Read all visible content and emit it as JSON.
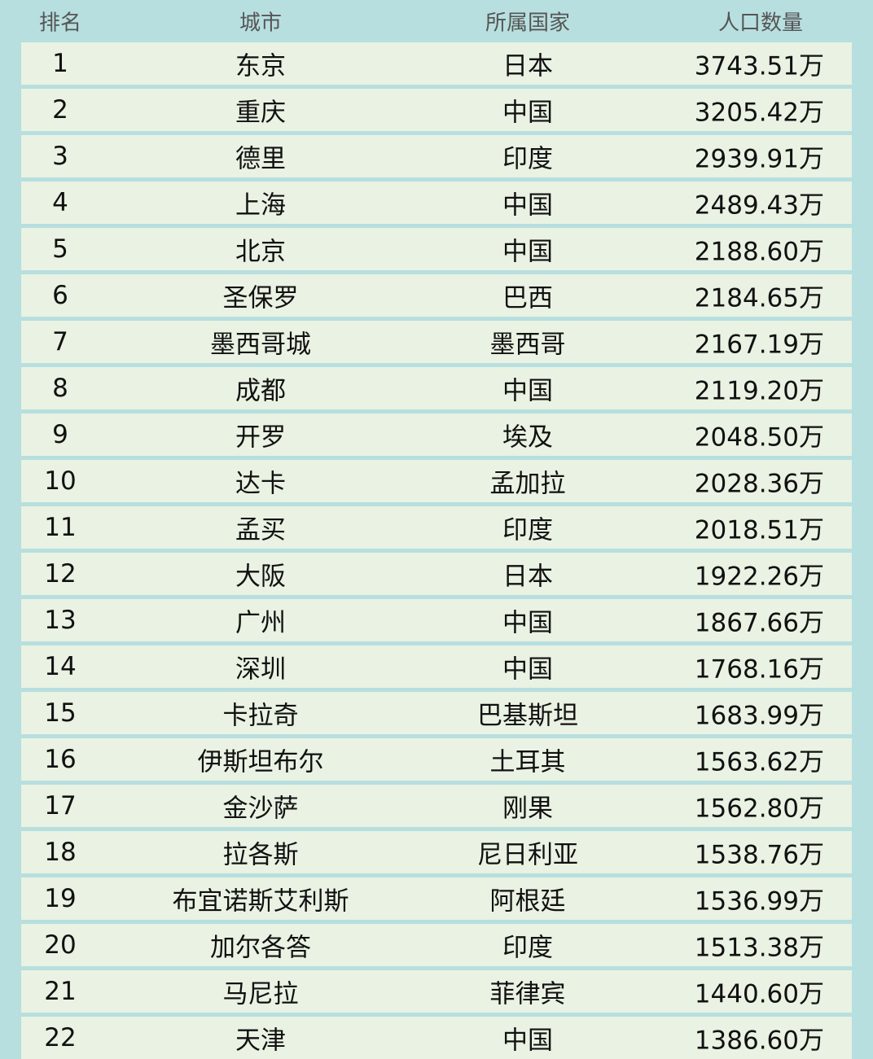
{
  "header": {
    "rank": "排名",
    "city": "城市",
    "country": "所属国家",
    "population": "人口数量"
  },
  "rows": [
    {
      "rank": "1",
      "city": "东京",
      "country": "日本",
      "population": "3743.51万"
    },
    {
      "rank": "2",
      "city": "重庆",
      "country": "中国",
      "population": "3205.42万"
    },
    {
      "rank": "3",
      "city": "德里",
      "country": "印度",
      "population": "2939.91万"
    },
    {
      "rank": "4",
      "city": "上海",
      "country": "中国",
      "population": "2489.43万"
    },
    {
      "rank": "5",
      "city": "北京",
      "country": "中国",
      "population": "2188.60万"
    },
    {
      "rank": "6",
      "city": "圣保罗",
      "country": "巴西",
      "population": "2184.65万"
    },
    {
      "rank": "7",
      "city": "墨西哥城",
      "country": "墨西哥",
      "population": "2167.19万"
    },
    {
      "rank": "8",
      "city": "成都",
      "country": "中国",
      "population": "2119.20万"
    },
    {
      "rank": "9",
      "city": "开罗",
      "country": "埃及",
      "population": "2048.50万"
    },
    {
      "rank": "10",
      "city": "达卡",
      "country": "孟加拉",
      "population": "2028.36万"
    },
    {
      "rank": "11",
      "city": "孟买",
      "country": "印度",
      "population": "2018.51万"
    },
    {
      "rank": "12",
      "city": "大阪",
      "country": "日本",
      "population": "1922.26万"
    },
    {
      "rank": "13",
      "city": "广州",
      "country": "中国",
      "population": "1867.66万"
    },
    {
      "rank": "14",
      "city": "深圳",
      "country": "中国",
      "population": "1768.16万"
    },
    {
      "rank": "15",
      "city": "卡拉奇",
      "country": "巴基斯坦",
      "population": "1683.99万"
    },
    {
      "rank": "16",
      "city": "伊斯坦布尔",
      "country": "土耳其",
      "population": "1563.62万"
    },
    {
      "rank": "17",
      "city": "金沙萨",
      "country": "刚果",
      "population": "1562.80万"
    },
    {
      "rank": "18",
      "city": "拉各斯",
      "country": "尼日利亚",
      "population": "1538.76万"
    },
    {
      "rank": "19",
      "city": "布宜诺斯艾利斯",
      "country": "阿根廷",
      "population": "1536.99万"
    },
    {
      "rank": "20",
      "city": "加尔各答",
      "country": "印度",
      "population": "1513.38万"
    },
    {
      "rank": "21",
      "city": "马尼拉",
      "country": "菲律宾",
      "population": "1440.60万"
    },
    {
      "rank": "22",
      "city": "天津",
      "country": "中国",
      "population": "1386.60万"
    }
  ]
}
